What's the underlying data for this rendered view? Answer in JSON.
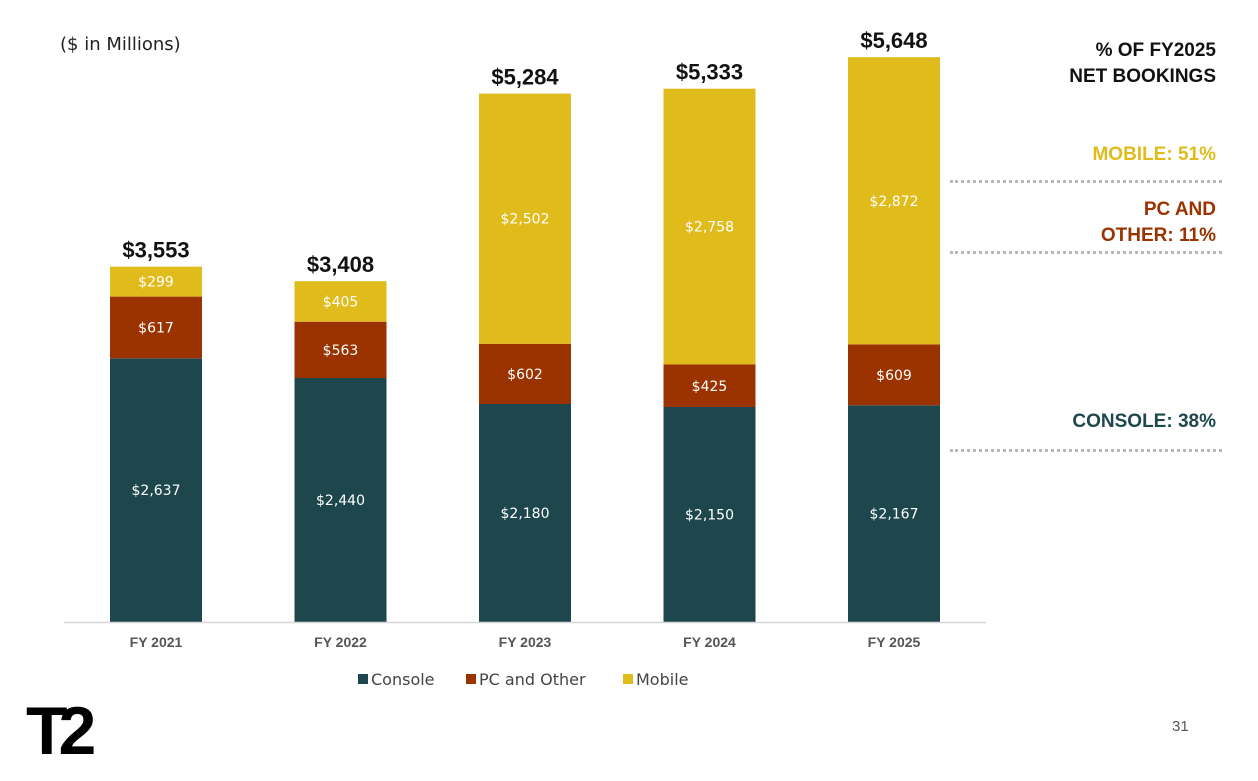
{
  "unit_note": "($ in Millions)",
  "side_panel": {
    "heading": "% OF FY2025\nNET BOOKINGS",
    "mobile_label": "MOBILE: 51%",
    "pc_label": "PC AND\nOTHER: 11%",
    "console_label": "CONSOLE: 38%"
  },
  "logo_text": "T2",
  "page_number": "31",
  "colors": {
    "console": "#1e474d",
    "pc_and_other": "#9a3300",
    "mobile": "#e0bb1c",
    "axis": "#d6d6d6"
  },
  "chart_data": {
    "type": "bar",
    "stacked": true,
    "categories": [
      "FY 2021",
      "FY 2022",
      "FY 2023",
      "FY 2024",
      "FY 2025"
    ],
    "series": [
      {
        "name": "Console",
        "values": [
          2637,
          2440,
          2180,
          2150,
          2167
        ],
        "labels": [
          "$2,637",
          "$2,440",
          "$2,180",
          "$2,150",
          "$2,167"
        ]
      },
      {
        "name": "PC and Other",
        "values": [
          617,
          563,
          602,
          425,
          609
        ],
        "labels": [
          "$617",
          "$563",
          "$602",
          "$425",
          "$609"
        ]
      },
      {
        "name": "Mobile",
        "values": [
          299,
          405,
          2502,
          2758,
          2872
        ],
        "labels": [
          "$299",
          "$405",
          "$2,502",
          "$2,758",
          "$2,872"
        ]
      }
    ],
    "totals": [
      3553,
      3408,
      5284,
      5333,
      5648
    ],
    "total_labels": [
      "$3,553",
      "$3,408",
      "$5,284",
      "$5,333",
      "$5,648"
    ],
    "ylim": [
      0,
      6000
    ],
    "grid": false,
    "legend_position": "bottom"
  }
}
